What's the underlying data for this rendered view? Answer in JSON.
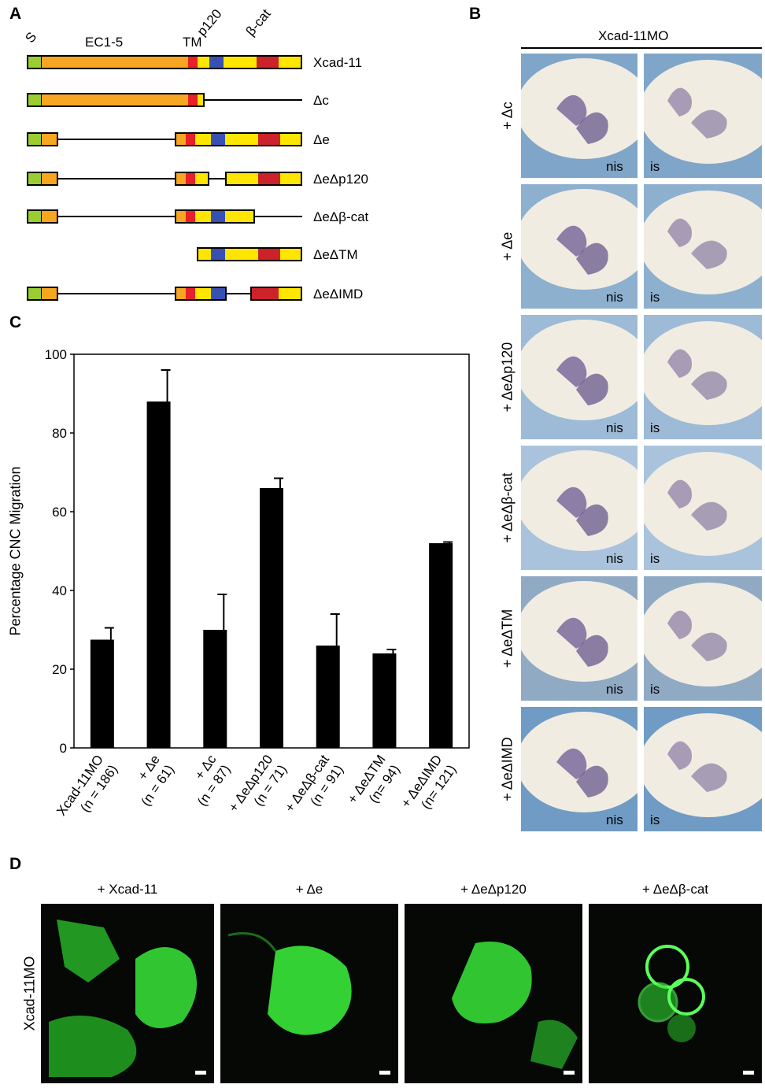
{
  "panels": {
    "a": "A",
    "b": "B",
    "c": "C",
    "d": "D"
  },
  "panel_a": {
    "domain_labels": {
      "s": "S",
      "ec": "EC1-5",
      "tm": "TM",
      "p120": "p120",
      "bcat": "β-cat"
    },
    "constructs": [
      "Xcad-11",
      "Δc",
      "Δe",
      "ΔeΔp120",
      "ΔeΔβ-cat",
      "ΔeΔTM",
      "ΔeΔIMD"
    ],
    "colors": {
      "signal": "#9acd32",
      "ec": "#f6a621",
      "tm": "#e8202a",
      "p120": "#3750b4",
      "bcat": "#cc2229",
      "cyto": "#ffe600"
    }
  },
  "panel_b": {
    "header": "Xcad-11MO",
    "rows": [
      "+ Δc",
      "+ Δe",
      "+ ΔeΔp120",
      "+ ΔeΔβ-cat",
      "+ ΔeΔTM",
      "+ ΔeΔIMD"
    ],
    "side_labels": [
      "nis",
      "is"
    ]
  },
  "chart_data": {
    "type": "bar",
    "ylabel": "Percentage CNC Migration",
    "ylim": [
      0,
      100
    ],
    "yticks": [
      "0",
      "20",
      "40",
      "60",
      "80",
      "100"
    ],
    "categories": [
      [
        "Xcad-11MO",
        "(n = 186)"
      ],
      [
        "+ Δe",
        "(n = 61)"
      ],
      [
        "+ Δc",
        "(n = 87)"
      ],
      [
        "+ ΔeΔp120",
        "(n = 71)"
      ],
      [
        "+ ΔeΔβ-cat",
        "(n = 91)"
      ],
      [
        "+ ΔeΔTM",
        "(n= 94)"
      ],
      [
        "+ ΔeΔIMD",
        "(n= 121)"
      ]
    ],
    "values": [
      27.5,
      88,
      30,
      66,
      26,
      24,
      52
    ],
    "errors": [
      3,
      8,
      9,
      2.5,
      8,
      1,
      0.3
    ]
  },
  "panel_d": {
    "row_label": "Xcad-11MO",
    "columns": [
      "+ Xcad-11",
      "+ Δe",
      "+ ΔeΔp120",
      "+ ΔeΔβ-cat"
    ]
  }
}
